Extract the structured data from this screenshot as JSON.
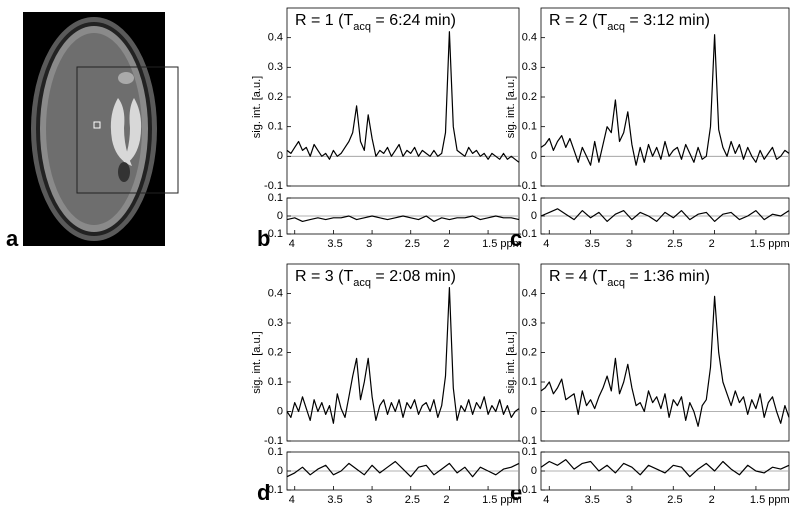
{
  "panel_labels": [
    "a",
    "b",
    "c",
    "d",
    "e"
  ],
  "chart_data": [
    {
      "type": "line",
      "title": [
        "R = 1 (T",
        "acq",
        " = 6:24 min)"
      ],
      "y_label": "sig. int. [a.u.]",
      "color": "#000000",
      "x": [
        4.1,
        4.05,
        4,
        3.95,
        3.9,
        3.85,
        3.8,
        3.75,
        3.7,
        3.65,
        3.6,
        3.55,
        3.5,
        3.45,
        3.4,
        3.35,
        3.3,
        3.25,
        3.2,
        3.15,
        3.1,
        3.05,
        3,
        2.95,
        2.9,
        2.85,
        2.8,
        2.75,
        2.7,
        2.65,
        2.6,
        2.55,
        2.5,
        2.45,
        2.4,
        2.35,
        2.3,
        2.25,
        2.2,
        2.15,
        2.1,
        2.05,
        2,
        1.95,
        1.9,
        1.85,
        1.8,
        1.75,
        1.7,
        1.65,
        1.6,
        1.55,
        1.5,
        1.45,
        1.4,
        1.35,
        1.3,
        1.25,
        1.2,
        1.15,
        1.1
      ],
      "values": [
        0.02,
        0.01,
        0.03,
        0.05,
        0.02,
        0.03,
        0.0,
        0.04,
        0.02,
        0.0,
        0.01,
        -0.01,
        0.02,
        0.0,
        0.01,
        0.03,
        0.05,
        0.08,
        0.17,
        0.05,
        0.02,
        0.14,
        0.06,
        0.0,
        0.02,
        0.01,
        0.03,
        0.0,
        0.02,
        0.04,
        0.0,
        0.02,
        0.01,
        0.03,
        0.0,
        0.02,
        0.01,
        0.0,
        0.02,
        0.0,
        0.01,
        0.08,
        0.42,
        0.1,
        0.02,
        0.01,
        0.0,
        0.03,
        0.01,
        0.02,
        0.0,
        0.01,
        -0.01,
        0.01,
        0.0,
        -0.01,
        0.01,
        -0.01,
        0.0,
        -0.01,
        -0.02
      ],
      "xlim": [
        4.1,
        1.1
      ],
      "ylim": [
        -0.1,
        0.5
      ],
      "yticks": [
        -0.1,
        0,
        0.1,
        0.2,
        0.3,
        0.4
      ]
    },
    {
      "type": "line",
      "color": "#000000",
      "x": [
        4.1,
        4,
        3.9,
        3.8,
        3.7,
        3.6,
        3.5,
        3.4,
        3.3,
        3.2,
        3.1,
        3,
        2.9,
        2.8,
        2.7,
        2.6,
        2.5,
        2.4,
        2.3,
        2.2,
        2.1,
        2,
        1.9,
        1.8,
        1.7,
        1.6,
        1.5,
        1.4,
        1.3,
        1.2,
        1.1
      ],
      "values": [
        -0.02,
        -0.01,
        -0.03,
        -0.02,
        -0.01,
        -0.02,
        -0.01,
        -0.01,
        0.0,
        -0.02,
        -0.01,
        0.0,
        -0.01,
        -0.02,
        -0.01,
        0.0,
        -0.01,
        -0.02,
        0.0,
        -0.03,
        -0.01,
        -0.02,
        -0.01,
        -0.01,
        0.0,
        -0.02,
        -0.01,
        0.0,
        -0.01,
        -0.01,
        -0.02
      ],
      "xlim": [
        4.1,
        1.1
      ],
      "ylim": [
        -0.1,
        0.1
      ],
      "yticks": [
        -0.1,
        0,
        0.1
      ],
      "xticks": [
        4,
        3.5,
        3,
        2.5,
        2,
        {
          "value": 1.5,
          "label": "1.5 ppm"
        }
      ]
    },
    {
      "type": "line",
      "title": [
        "R = 2 (T",
        "acq",
        " = 3:12 min)"
      ],
      "y_label": "sig. int. [a.u.]",
      "color": "#000000",
      "x": [
        4.1,
        4.05,
        4,
        3.95,
        3.9,
        3.85,
        3.8,
        3.75,
        3.7,
        3.65,
        3.6,
        3.55,
        3.5,
        3.45,
        3.4,
        3.35,
        3.3,
        3.25,
        3.2,
        3.15,
        3.1,
        3.05,
        3,
        2.95,
        2.9,
        2.85,
        2.8,
        2.75,
        2.7,
        2.65,
        2.6,
        2.55,
        2.5,
        2.45,
        2.4,
        2.35,
        2.3,
        2.25,
        2.2,
        2.15,
        2.1,
        2.05,
        2,
        1.95,
        1.9,
        1.85,
        1.8,
        1.75,
        1.7,
        1.65,
        1.6,
        1.55,
        1.5,
        1.45,
        1.4,
        1.35,
        1.3,
        1.25,
        1.2,
        1.15,
        1.1
      ],
      "values": [
        0.03,
        0.04,
        0.06,
        0.02,
        0.05,
        0.07,
        0.03,
        0.06,
        0.02,
        -0.02,
        0.03,
        0.0,
        -0.03,
        0.05,
        -0.02,
        0.04,
        0.1,
        0.08,
        0.19,
        0.05,
        0.08,
        0.15,
        0.04,
        -0.03,
        0.03,
        -0.02,
        0.04,
        0.0,
        0.03,
        -0.01,
        0.05,
        0.0,
        0.02,
        0.03,
        -0.01,
        0.04,
        0.01,
        -0.02,
        0.03,
        -0.01,
        0.0,
        0.1,
        0.41,
        0.09,
        0.03,
        0.0,
        0.05,
        0.01,
        0.04,
        -0.01,
        0.03,
        0.0,
        -0.02,
        0.02,
        -0.01,
        0.01,
        0.03,
        -0.01,
        0.0,
        0.02,
        0.01
      ],
      "xlim": [
        4.1,
        1.1
      ],
      "ylim": [
        -0.1,
        0.5
      ],
      "yticks": [
        -0.1,
        0,
        0.1,
        0.2,
        0.3,
        0.4
      ]
    },
    {
      "type": "line",
      "color": "#000000",
      "x": [
        4.1,
        4,
        3.9,
        3.8,
        3.7,
        3.6,
        3.5,
        3.4,
        3.3,
        3.2,
        3.1,
        3,
        2.9,
        2.8,
        2.7,
        2.6,
        2.5,
        2.4,
        2.3,
        2.2,
        2.1,
        2,
        1.9,
        1.8,
        1.7,
        1.6,
        1.5,
        1.4,
        1.3,
        1.2,
        1.1
      ],
      "values": [
        0.0,
        0.02,
        0.04,
        0.01,
        -0.02,
        0.03,
        -0.01,
        0.02,
        -0.03,
        0.01,
        0.03,
        -0.02,
        0.02,
        0.0,
        -0.03,
        0.02,
        -0.01,
        0.03,
        -0.02,
        0.01,
        0.02,
        -0.03,
        0.01,
        0.02,
        -0.02,
        0.0,
        0.03,
        -0.02,
        0.01,
        0.0,
        0.03
      ],
      "xlim": [
        4.1,
        1.1
      ],
      "ylim": [
        -0.1,
        0.1
      ],
      "yticks": [
        -0.1,
        0,
        0.1
      ],
      "xticks": [
        4,
        3.5,
        3,
        2.5,
        2,
        {
          "value": 1.5,
          "label": "1.5 ppm"
        }
      ]
    },
    {
      "type": "line",
      "title": [
        "R = 3 (T",
        "acq",
        " = 2:08 min)"
      ],
      "y_label": "sig. int. [a.u.]",
      "color": "#000000",
      "x": [
        4.1,
        4.05,
        4,
        3.95,
        3.9,
        3.85,
        3.8,
        3.75,
        3.7,
        3.65,
        3.6,
        3.55,
        3.5,
        3.45,
        3.4,
        3.35,
        3.3,
        3.25,
        3.2,
        3.15,
        3.1,
        3.05,
        3,
        2.95,
        2.9,
        2.85,
        2.8,
        2.75,
        2.7,
        2.65,
        2.6,
        2.55,
        2.5,
        2.45,
        2.4,
        2.35,
        2.3,
        2.25,
        2.2,
        2.15,
        2.1,
        2.05,
        2,
        1.95,
        1.9,
        1.85,
        1.8,
        1.75,
        1.7,
        1.65,
        1.6,
        1.55,
        1.5,
        1.45,
        1.4,
        1.35,
        1.3,
        1.25,
        1.2,
        1.15,
        1.1
      ],
      "values": [
        0.0,
        -0.02,
        0.03,
        0.0,
        0.05,
        0.01,
        -0.03,
        0.04,
        0.0,
        0.03,
        -0.01,
        0.02,
        -0.04,
        0.06,
        0.01,
        -0.02,
        0.05,
        0.12,
        0.18,
        0.04,
        0.1,
        0.18,
        0.05,
        -0.03,
        0.02,
        0.04,
        -0.01,
        0.03,
        0.0,
        0.04,
        -0.02,
        0.03,
        0.01,
        0.04,
        -0.01,
        0.02,
        0.03,
        0.0,
        0.04,
        -0.02,
        0.02,
        0.12,
        0.42,
        0.08,
        -0.03,
        0.02,
        0.0,
        0.04,
        -0.01,
        0.03,
        0.01,
        0.05,
        -0.01,
        0.02,
        0.0,
        0.04,
        -0.01,
        0.02,
        -0.02,
        0.0,
        0.01
      ],
      "xlim": [
        4.1,
        1.1
      ],
      "ylim": [
        -0.1,
        0.5
      ],
      "yticks": [
        -0.1,
        0,
        0.1,
        0.2,
        0.3,
        0.4
      ]
    },
    {
      "type": "line",
      "color": "#000000",
      "x": [
        4.1,
        4,
        3.9,
        3.8,
        3.7,
        3.6,
        3.5,
        3.4,
        3.3,
        3.2,
        3.1,
        3,
        2.9,
        2.8,
        2.7,
        2.6,
        2.5,
        2.4,
        2.3,
        2.2,
        2.1,
        2,
        1.9,
        1.8,
        1.7,
        1.6,
        1.5,
        1.4,
        1.3,
        1.2,
        1.1
      ],
      "values": [
        -0.03,
        -0.01,
        0.02,
        -0.02,
        0.01,
        0.03,
        -0.02,
        0.0,
        0.04,
        0.01,
        -0.02,
        0.03,
        -0.01,
        0.02,
        0.05,
        0.01,
        -0.03,
        0.02,
        0.03,
        -0.02,
        0.01,
        0.04,
        -0.01,
        0.02,
        -0.03,
        0.02,
        0.0,
        -0.02,
        0.01,
        0.02,
        0.04
      ],
      "xlim": [
        4.1,
        1.1
      ],
      "ylim": [
        -0.1,
        0.1
      ],
      "yticks": [
        -0.1,
        0,
        0.1
      ],
      "xticks": [
        4,
        3.5,
        3,
        2.5,
        2,
        {
          "value": 1.5,
          "label": "1.5 ppm"
        }
      ]
    },
    {
      "type": "line",
      "title": [
        "R = 4 (T",
        "acq",
        " = 1:36 min)"
      ],
      "y_label": "sig. int. [a.u.]",
      "color": "#000000",
      "x": [
        4.1,
        4.05,
        4,
        3.95,
        3.9,
        3.85,
        3.8,
        3.75,
        3.7,
        3.65,
        3.6,
        3.55,
        3.5,
        3.45,
        3.4,
        3.35,
        3.3,
        3.25,
        3.2,
        3.15,
        3.1,
        3.05,
        3,
        2.95,
        2.9,
        2.85,
        2.8,
        2.75,
        2.7,
        2.65,
        2.6,
        2.55,
        2.5,
        2.45,
        2.4,
        2.35,
        2.3,
        2.25,
        2.2,
        2.15,
        2.1,
        2.05,
        2,
        1.95,
        1.9,
        1.85,
        1.8,
        1.75,
        1.7,
        1.65,
        1.6,
        1.55,
        1.5,
        1.45,
        1.4,
        1.35,
        1.3,
        1.25,
        1.2,
        1.15,
        1.1
      ],
      "values": [
        0.07,
        0.08,
        0.1,
        0.06,
        0.08,
        0.11,
        0.04,
        0.05,
        0.06,
        -0.01,
        0.07,
        0.02,
        0.04,
        0.01,
        0.05,
        0.08,
        0.12,
        0.07,
        0.18,
        0.06,
        0.1,
        0.16,
        0.08,
        0.02,
        0.03,
        0.0,
        0.07,
        0.03,
        0.05,
        0.01,
        0.06,
        -0.02,
        0.04,
        0.02,
        0.05,
        -0.03,
        0.03,
        0.0,
        -0.05,
        0.02,
        0.04,
        0.15,
        0.39,
        0.2,
        0.1,
        0.06,
        0.02,
        0.07,
        0.03,
        0.05,
        -0.01,
        0.04,
        0.01,
        0.06,
        -0.02,
        0.03,
        0.05,
        0.0,
        -0.04,
        0.02,
        -0.02
      ],
      "xlim": [
        4.1,
        1.1
      ],
      "ylim": [
        -0.1,
        0.5
      ],
      "yticks": [
        -0.1,
        0,
        0.1,
        0.2,
        0.3,
        0.4
      ]
    },
    {
      "type": "line",
      "color": "#000000",
      "x": [
        4.1,
        4,
        3.9,
        3.8,
        3.7,
        3.6,
        3.5,
        3.4,
        3.3,
        3.2,
        3.1,
        3,
        2.9,
        2.8,
        2.7,
        2.6,
        2.5,
        2.4,
        2.3,
        2.2,
        2.1,
        2,
        1.9,
        1.8,
        1.7,
        1.6,
        1.5,
        1.4,
        1.3,
        1.2,
        1.1
      ],
      "values": [
        0.02,
        0.05,
        0.03,
        0.06,
        0.01,
        0.04,
        0.05,
        0.0,
        0.03,
        -0.01,
        0.04,
        0.02,
        -0.02,
        0.03,
        0.01,
        -0.01,
        0.03,
        0.02,
        -0.03,
        0.01,
        0.04,
        0.0,
        0.05,
        0.01,
        -0.02,
        0.03,
        0.0,
        -0.01,
        0.02,
        0.01,
        0.03
      ],
      "xlim": [
        4.1,
        1.1
      ],
      "ylim": [
        -0.1,
        0.1
      ],
      "yticks": [
        -0.1,
        0,
        0.1
      ],
      "xticks": [
        4,
        3.5,
        3,
        2.5,
        2,
        {
          "value": 1.5,
          "label": "1.5 ppm"
        }
      ]
    }
  ]
}
